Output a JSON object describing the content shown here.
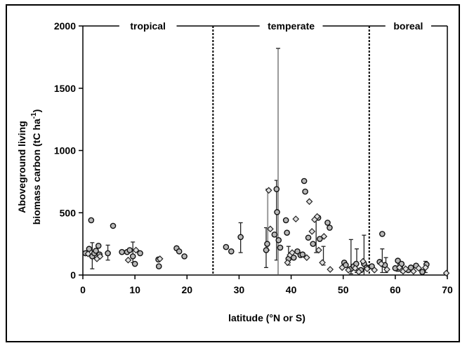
{
  "chart_data": {
    "type": "scatter",
    "title": "",
    "xlabel": "latitude (°N or S)",
    "ylabel_line1": "Aboveground living",
    "ylabel_line2": "biomass carbon (tC ha",
    "ylabel_sup": "-1",
    "ylabel_end": ")",
    "xlim": [
      0,
      70
    ],
    "ylim": [
      0,
      2000
    ],
    "xticks": [
      0,
      10,
      20,
      30,
      40,
      50,
      60,
      70
    ],
    "yticks": [
      0,
      500,
      1000,
      1500,
      2000
    ],
    "grid": false,
    "zones": [
      {
        "name": "tropical",
        "from": 0,
        "to": 25
      },
      {
        "name": "temperate",
        "from": 25,
        "to": 55
      },
      {
        "name": "boreal",
        "from": 55,
        "to": 70
      }
    ],
    "zone_boundaries": [
      25,
      55
    ],
    "series": [
      {
        "marker": "circle",
        "points": [
          [
            0.5,
            175
          ],
          [
            1.2,
            210
          ],
          [
            1.6,
            440
          ],
          [
            1.8,
            150
          ],
          [
            2.2,
            175
          ],
          [
            2.5,
            195
          ],
          [
            3,
            235
          ],
          [
            3.2,
            165
          ],
          [
            4.8,
            175
          ],
          [
            5.8,
            395
          ],
          [
            7.5,
            185
          ],
          [
            8.5,
            185
          ],
          [
            9,
            200
          ],
          [
            9.6,
            150
          ],
          [
            10,
            90
          ],
          [
            11,
            175
          ],
          [
            14.5,
            125
          ],
          [
            14.6,
            70
          ],
          [
            18,
            215
          ],
          [
            18.5,
            190
          ],
          [
            19.5,
            150
          ],
          [
            27.5,
            225
          ],
          [
            28.5,
            190
          ],
          [
            30.3,
            305
          ],
          [
            35.2,
            200
          ],
          [
            35.4,
            250
          ],
          [
            36.8,
            325
          ],
          [
            37.2,
            690
          ],
          [
            37.3,
            505
          ],
          [
            37.6,
            280
          ],
          [
            37.9,
            220
          ],
          [
            39,
            440
          ],
          [
            39.2,
            340
          ],
          [
            39.5,
            130
          ],
          [
            40.5,
            140
          ],
          [
            41.2,
            190
          ],
          [
            41.8,
            160
          ],
          [
            42.2,
            165
          ],
          [
            42.5,
            755
          ],
          [
            42.7,
            670
          ],
          [
            43.3,
            300
          ],
          [
            44.2,
            250
          ],
          [
            45.2,
            460
          ],
          [
            45.5,
            290
          ],
          [
            47,
            420
          ],
          [
            47.4,
            380
          ],
          [
            50.2,
            100
          ],
          [
            50.5,
            80
          ],
          [
            51.5,
            50
          ],
          [
            52,
            70
          ],
          [
            52.5,
            90
          ],
          [
            53.4,
            40
          ],
          [
            54,
            90
          ],
          [
            54.5,
            60
          ],
          [
            55.5,
            70
          ],
          [
            57,
            105
          ],
          [
            57.5,
            330
          ],
          [
            58,
            80
          ],
          [
            60,
            55
          ],
          [
            60.5,
            115
          ],
          [
            61.2,
            90
          ],
          [
            62.5,
            40
          ],
          [
            63,
            60
          ],
          [
            64,
            75
          ],
          [
            65.2,
            25
          ],
          [
            66,
            85
          ]
        ]
      },
      {
        "marker": "diamond",
        "points": [
          [
            1,
            170
          ],
          [
            2.7,
            130
          ],
          [
            3.3,
            150
          ],
          [
            8.7,
            120
          ],
          [
            10.2,
            200
          ],
          [
            14.8,
            130
          ],
          [
            35.7,
            680
          ],
          [
            36,
            370
          ],
          [
            39.3,
            100
          ],
          [
            39.8,
            160
          ],
          [
            40.2,
            180
          ],
          [
            40.9,
            450
          ],
          [
            43,
            140
          ],
          [
            43.5,
            590
          ],
          [
            44,
            350
          ],
          [
            44.5,
            445
          ],
          [
            45,
            470
          ],
          [
            45.3,
            200
          ],
          [
            46,
            100
          ],
          [
            46.3,
            310
          ],
          [
            47.5,
            45
          ],
          [
            49.8,
            60
          ],
          [
            51,
            40
          ],
          [
            52.3,
            55
          ],
          [
            53,
            25
          ],
          [
            53.8,
            110
          ],
          [
            54.6,
            50
          ],
          [
            56,
            40
          ],
          [
            57.3,
            90
          ],
          [
            58.4,
            45
          ],
          [
            60.8,
            60
          ],
          [
            61.5,
            30
          ],
          [
            62,
            50
          ],
          [
            63.5,
            30
          ],
          [
            64.5,
            55
          ],
          [
            65.8,
            60
          ],
          [
            69.8,
            15
          ]
        ]
      }
    ],
    "error_bars": [
      {
        "x": 1.8,
        "lo": 50,
        "hi": 260
      },
      {
        "x": 4.8,
        "lo": 120,
        "hi": 240
      },
      {
        "x": 9.6,
        "lo": 100,
        "hi": 265
      },
      {
        "x": 30.3,
        "lo": 180,
        "hi": 420
      },
      {
        "x": 35.2,
        "lo": 60,
        "hi": 380
      },
      {
        "x": 35.5,
        "lo": 200,
        "hi": 690,
        "grey": true
      },
      {
        "x": 37.2,
        "lo": 120,
        "hi": 760
      },
      {
        "x": 37.5,
        "lo": 0,
        "hi": 1820,
        "grey": true
      },
      {
        "x": 39.5,
        "lo": 80,
        "hi": 230
      },
      {
        "x": 44.8,
        "lo": 180,
        "hi": 460
      },
      {
        "x": 46.2,
        "lo": 80,
        "hi": 230
      },
      {
        "x": 51.5,
        "lo": 10,
        "hi": 285
      },
      {
        "x": 52.6,
        "lo": 20,
        "hi": 210
      },
      {
        "x": 54,
        "lo": 0,
        "hi": 320
      },
      {
        "x": 57.5,
        "lo": 20,
        "hi": 210
      },
      {
        "x": 58.2,
        "lo": 20,
        "hi": 140
      },
      {
        "x": 60.5,
        "lo": 30,
        "hi": 115
      },
      {
        "x": 61.4,
        "lo": 20,
        "hi": 80
      },
      {
        "x": 65.8,
        "lo": 20,
        "hi": 110
      }
    ]
  }
}
